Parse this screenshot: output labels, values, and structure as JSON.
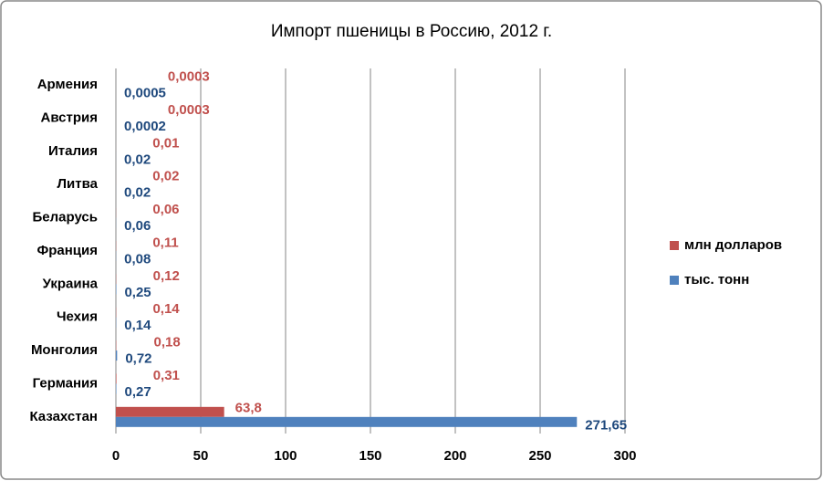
{
  "chart_data": {
    "type": "bar",
    "orientation": "horizontal",
    "title": "Импорт пшеницы в Россию, 2012 г.",
    "categories": [
      "Армения",
      "Австрия",
      "Италия",
      "Литва",
      "Беларусь",
      "Франция",
      "Украина",
      "Чехия",
      "Монголия",
      "Германия",
      "Казахстан"
    ],
    "series": [
      {
        "name": "млн долларов",
        "color": "#c0504d",
        "values": [
          0.0003,
          0.0003,
          0.01,
          0.02,
          0.06,
          0.11,
          0.12,
          0.14,
          0.18,
          0.31,
          63.8
        ],
        "value_labels": [
          "0,0003",
          "0,0003",
          "0,01",
          "0,02",
          "0,06",
          "0,11",
          "0,12",
          "0,14",
          "0,18",
          "0,31",
          "63,8"
        ]
      },
      {
        "name": "тыс. тонн",
        "color": "#4f81bd",
        "values": [
          0.0005,
          0.0002,
          0.02,
          0.02,
          0.06,
          0.08,
          0.25,
          0.14,
          0.72,
          0.27,
          271.65
        ],
        "value_labels": [
          "0,0005",
          "0,0002",
          "0,02",
          "0,02",
          "0,06",
          "0,08",
          "0,25",
          "0,14",
          "0,72",
          "0,27",
          "271,65"
        ]
      }
    ],
    "xlim": [
      0,
      300
    ],
    "xticks": [
      0,
      50,
      100,
      150,
      200,
      250,
      300
    ],
    "grid": true,
    "legend": "right"
  }
}
